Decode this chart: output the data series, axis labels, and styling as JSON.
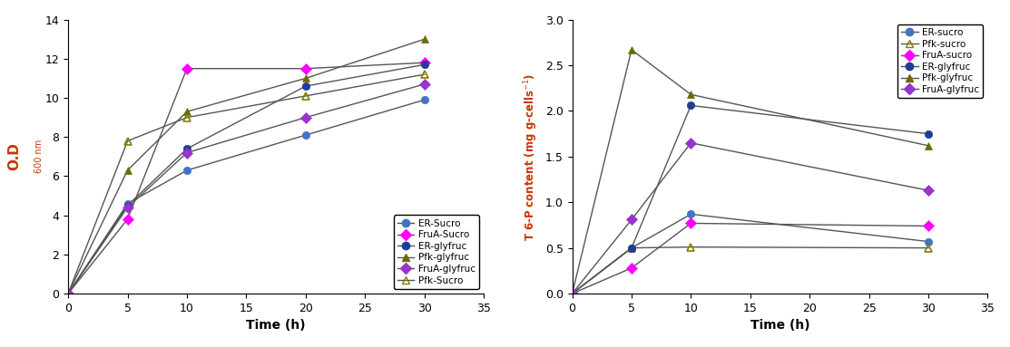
{
  "left_chart": {
    "xlabel": "Time (h)",
    "xlim": [
      0,
      35
    ],
    "ylim": [
      0,
      14
    ],
    "xticks": [
      0,
      5,
      10,
      15,
      20,
      25,
      30,
      35
    ],
    "yticks": [
      0,
      2,
      4,
      6,
      8,
      10,
      12,
      14
    ],
    "series": [
      {
        "label": "ER-Sucro",
        "x": [
          0,
          5,
          10,
          20,
          30
        ],
        "y": [
          0,
          4.6,
          6.3,
          8.1,
          9.9
        ],
        "marker_color": "#4472c4",
        "marker_edge_color": "#4472c4",
        "marker": "o",
        "markersize": 6,
        "fillstyle": "full"
      },
      {
        "label": "FruA-Sucro",
        "x": [
          0,
          5,
          10,
          20,
          30
        ],
        "y": [
          0,
          3.8,
          11.5,
          11.5,
          11.8
        ],
        "marker_color": "#ff00ff",
        "marker_edge_color": "#ff00ff",
        "marker": "D",
        "markersize": 6,
        "fillstyle": "full"
      },
      {
        "label": "ER-glyfruc",
        "x": [
          0,
          5,
          10,
          20,
          30
        ],
        "y": [
          0,
          4.5,
          7.4,
          10.6,
          11.7
        ],
        "marker_color": "#1f3d99",
        "marker_edge_color": "#1f3d99",
        "marker": "o",
        "markersize": 6,
        "fillstyle": "full"
      },
      {
        "label": "Pfk-glyfruc",
        "x": [
          0,
          5,
          10,
          20,
          30
        ],
        "y": [
          0,
          6.3,
          9.3,
          11.0,
          13.0
        ],
        "marker_color": "#6b6b00",
        "marker_edge_color": "#6b6b00",
        "marker": "^",
        "markersize": 6,
        "fillstyle": "full"
      },
      {
        "label": "FruA-glyfruc",
        "x": [
          0,
          5,
          10,
          20,
          30
        ],
        "y": [
          0,
          4.4,
          7.2,
          9.0,
          10.7
        ],
        "marker_color": "#9933cc",
        "marker_edge_color": "#9933cc",
        "marker": "D",
        "markersize": 6,
        "fillstyle": "full"
      },
      {
        "label": "Pfk-Sucro",
        "x": [
          0,
          5,
          10,
          20,
          30
        ],
        "y": [
          0,
          7.8,
          9.0,
          10.1,
          11.2
        ],
        "marker_color": "#ffff00",
        "marker_edge_color": "#808000",
        "marker": "^",
        "markersize": 6,
        "fillstyle": "none"
      }
    ]
  },
  "right_chart": {
    "xlabel": "Time (h)",
    "xlim": [
      0,
      35
    ],
    "ylim": [
      0,
      3.0
    ],
    "xticks": [
      0,
      5,
      10,
      15,
      20,
      25,
      30,
      35
    ],
    "yticks": [
      0.0,
      0.5,
      1.0,
      1.5,
      2.0,
      2.5,
      3.0
    ],
    "series": [
      {
        "label": "ER-sucro",
        "x": [
          0,
          5,
          10,
          30
        ],
        "y": [
          0,
          0.5,
          0.87,
          0.57
        ],
        "marker_color": "#4472c4",
        "marker_edge_color": "#4472c4",
        "marker": "o",
        "markersize": 6,
        "fillstyle": "full"
      },
      {
        "label": "Pfk-sucro",
        "x": [
          0,
          5,
          10,
          30
        ],
        "y": [
          0,
          0.5,
          0.51,
          0.5
        ],
        "marker_color": "#ffff00",
        "marker_edge_color": "#808000",
        "marker": "^",
        "markersize": 6,
        "fillstyle": "none"
      },
      {
        "label": "FruA-sucro",
        "x": [
          0,
          5,
          10,
          30
        ],
        "y": [
          0,
          0.28,
          0.77,
          0.74
        ],
        "marker_color": "#ff00ff",
        "marker_edge_color": "#ff00ff",
        "marker": "D",
        "markersize": 6,
        "fillstyle": "full"
      },
      {
        "label": "ER-glyfruc",
        "x": [
          0,
          5,
          10,
          30
        ],
        "y": [
          0,
          0.5,
          2.06,
          1.75
        ],
        "marker_color": "#1f3d99",
        "marker_edge_color": "#1f3d99",
        "marker": "o",
        "markersize": 6,
        "fillstyle": "full"
      },
      {
        "label": "Pfk-glyfruc",
        "x": [
          0,
          5,
          10,
          30
        ],
        "y": [
          0,
          2.67,
          2.18,
          1.62
        ],
        "marker_color": "#6b6b00",
        "marker_edge_color": "#6b6b00",
        "marker": "^",
        "markersize": 6,
        "fillstyle": "full"
      },
      {
        "label": "FruA-glyfruc",
        "x": [
          0,
          5,
          10,
          30
        ],
        "y": [
          0,
          0.81,
          1.65,
          1.13
        ],
        "marker_color": "#9933cc",
        "marker_edge_color": "#9933cc",
        "marker": "D",
        "markersize": 6,
        "fillstyle": "full"
      }
    ]
  },
  "line_color": "#555555",
  "line_width": 1.0
}
